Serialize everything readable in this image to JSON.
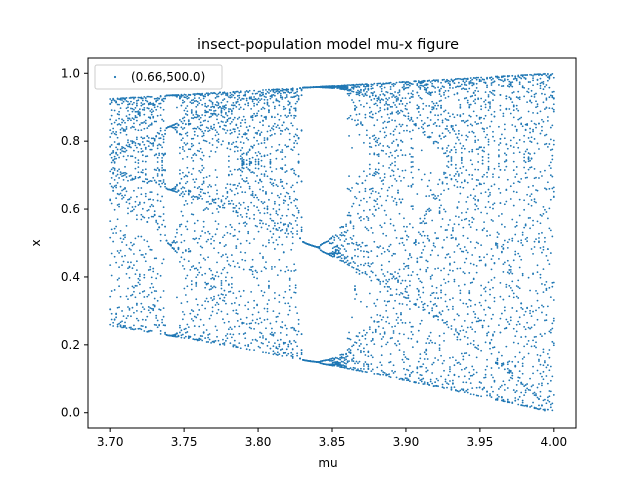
{
  "chart_data": {
    "type": "scatter",
    "title": "insect-population model mu-x figure",
    "xlabel": "mu",
    "ylabel": "x",
    "xlim": [
      3.685,
      4.015
    ],
    "ylim": [
      -0.045,
      1.045
    ],
    "xticks": [
      3.7,
      3.75,
      3.8,
      3.85,
      3.9,
      3.95,
      4.0
    ],
    "xtick_labels": [
      "3.70",
      "3.75",
      "3.80",
      "3.85",
      "3.90",
      "3.95",
      "4.00"
    ],
    "yticks": [
      0.0,
      0.2,
      0.4,
      0.6,
      0.8,
      1.0
    ],
    "ytick_labels": [
      "0.0",
      "0.2",
      "0.4",
      "0.6",
      "0.8",
      "1.0"
    ],
    "grid": false,
    "legend": "top-left",
    "point_color": "#1f77b4",
    "series": [
      {
        "name": "(0.66,500.0)",
        "mu_range": [
          3.7,
          4.0
        ],
        "model": "logistic map x(n+1) = mu * x(n) * (1 - x(n))",
        "x0": 0.66,
        "iterations": 500
      }
    ]
  }
}
